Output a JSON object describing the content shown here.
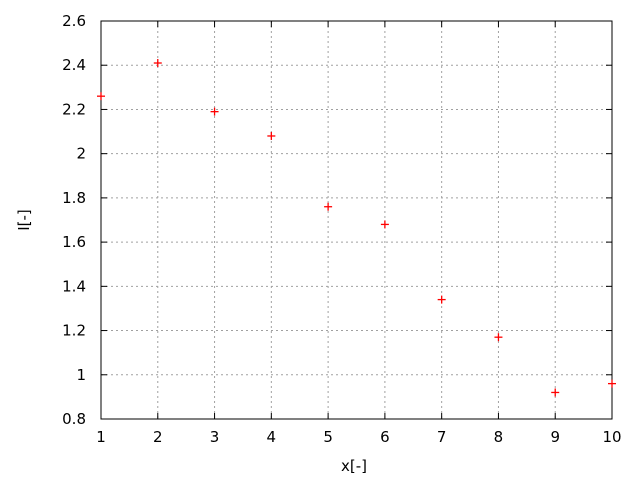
{
  "chart_data": {
    "type": "scatter",
    "title": "",
    "xlabel": "x[-]",
    "ylabel": "I[-]",
    "xlim": [
      1,
      10
    ],
    "ylim": [
      0.8,
      2.6
    ],
    "grid": true,
    "legend": "none",
    "marker": "plus",
    "series": [
      {
        "color": "#ff0000",
        "x": [
          1,
          2,
          3,
          4,
          5,
          6,
          7,
          8,
          9,
          10
        ],
        "y": [
          2.26,
          2.41,
          2.19,
          2.08,
          1.76,
          1.68,
          1.34,
          1.17,
          0.92,
          0.96
        ]
      }
    ],
    "xticks": [
      "1",
      "2",
      "3",
      "4",
      "5",
      "6",
      "7",
      "8",
      "9",
      "10"
    ],
    "yticks": [
      "0.8",
      "1",
      "1.2",
      "1.4",
      "1.6",
      "1.8",
      "2",
      "2.2",
      "2.4",
      "2.6"
    ],
    "colors": {
      "grid": "#a0a0a0",
      "axis": "#000000",
      "points": "#ff0000"
    }
  }
}
